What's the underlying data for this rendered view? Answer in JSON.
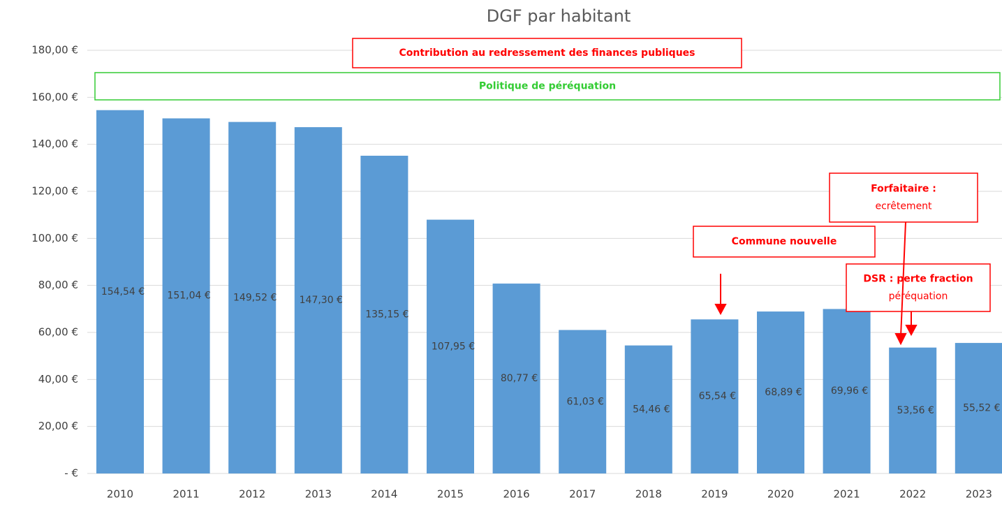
{
  "chart_data": {
    "type": "bar",
    "title": "DGF par habitant",
    "categories": [
      "2010",
      "2011",
      "2012",
      "2013",
      "2014",
      "2015",
      "2016",
      "2017",
      "2018",
      "2019",
      "2020",
      "2021",
      "2022",
      "2023"
    ],
    "values": [
      154.54,
      151.04,
      149.52,
      147.3,
      135.15,
      107.95,
      80.77,
      61.03,
      54.46,
      65.54,
      68.89,
      69.96,
      53.56,
      55.52
    ],
    "value_labels": [
      "154,54 €",
      "151,04 €",
      "149,52 €",
      "147,30 €",
      "135,15 €",
      "107,95 €",
      "80,77 €",
      "61,03 €",
      "54,46 €",
      "65,54 €",
      "68,89 €",
      "69,96 €",
      "53,56 €",
      "55,52 €"
    ],
    "color": "#5b9bd5",
    "ylim": [
      0,
      180
    ],
    "yticks": [
      {
        "value": 0,
        "label": "-  €"
      },
      {
        "value": 20,
        "label": "20,00 €"
      },
      {
        "value": 40,
        "label": "40,00 €"
      },
      {
        "value": 60,
        "label": "60,00 €"
      },
      {
        "value": 80,
        "label": "80,00 €"
      },
      {
        "value": 100,
        "label": "100,00 €"
      },
      {
        "value": 120,
        "label": "120,00 €"
      },
      {
        "value": 140,
        "label": "140,00 €"
      },
      {
        "value": 160,
        "label": "160,00 €"
      },
      {
        "value": 180,
        "label": "180,00 €"
      }
    ],
    "grid": true,
    "annotations": [
      {
        "lines": [
          "Contribution au redressement des finances publiques"
        ],
        "color": "#ff0000"
      },
      {
        "lines": [
          "Politique de péréquation"
        ],
        "color": "#33cc33"
      },
      {
        "lines": [
          "Commune nouvelle"
        ],
        "color": "#ff0000"
      },
      {
        "lines": [
          "Forfaitaire :",
          "ecrêtement"
        ],
        "color": "#ff0000"
      },
      {
        "lines": [
          "DSR : perte fraction",
          "péréquation"
        ],
        "color": "#ff0000"
      }
    ]
  }
}
